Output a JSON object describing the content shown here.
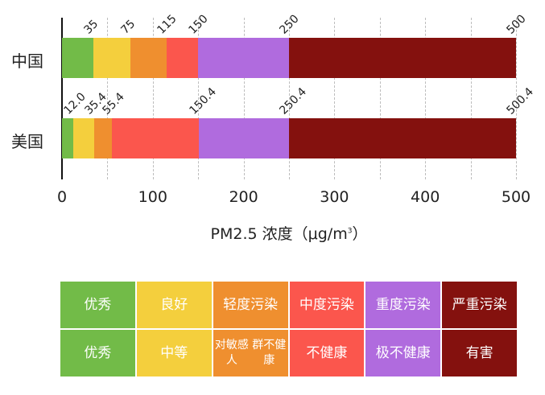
{
  "chart_data": {
    "type": "bar",
    "orientation": "horizontal-stacked",
    "title": "",
    "xlabel": "PM2.5 浓度（μg/m³）",
    "ylabel": "",
    "xlim": [
      0,
      500
    ],
    "x_ticks": [
      "0",
      "100",
      "200",
      "300",
      "400",
      "500"
    ],
    "grid": "vertical dashed every 50",
    "categories": [
      "中国",
      "美国"
    ],
    "colors": [
      "#72bb48",
      "#f4cf3d",
      "#ef8f2f",
      "#fb564d",
      "#b06bde",
      "#84110e"
    ],
    "series": [
      {
        "name": "中国",
        "breakpoints": [
          35,
          75,
          115,
          150,
          250,
          500
        ],
        "labels": [
          "35",
          "75",
          "115",
          "150",
          "250",
          "500"
        ]
      },
      {
        "name": "美国",
        "breakpoints": [
          12.0,
          35.4,
          55.4,
          150.4,
          250.4,
          500.4
        ],
        "labels": [
          "12.0",
          "35.4",
          "55.4",
          "150.4",
          "250.4",
          "500.4"
        ]
      }
    ]
  },
  "rows": [
    {
      "label": "中国",
      "labels": [
        "35",
        "75",
        "115",
        "150",
        "250",
        "500"
      ]
    },
    {
      "label": "美国",
      "labels": [
        "12.0",
        "35.4",
        "55.4",
        "150.4",
        "250.4",
        "500.4"
      ]
    }
  ],
  "axis": {
    "ticks": [
      "0",
      "100",
      "200",
      "300",
      "400",
      "500"
    ],
    "label_main": "PM2.5 浓度（μg/m",
    "label_sup": "3",
    "label_end": "）"
  },
  "legend_table": {
    "china_row": [
      "优秀",
      "良好",
      "轻度污染",
      "中度污染",
      "重度污染",
      "严重污染"
    ],
    "us_row": [
      "优秀",
      "中等",
      "对敏感人群不健康",
      "不健康",
      "极不健康",
      "有害"
    ],
    "colors": [
      "#72bb48",
      "#f4cf3d",
      "#ef8f2f",
      "#fb564d",
      "#b06bde",
      "#84110e"
    ]
  }
}
